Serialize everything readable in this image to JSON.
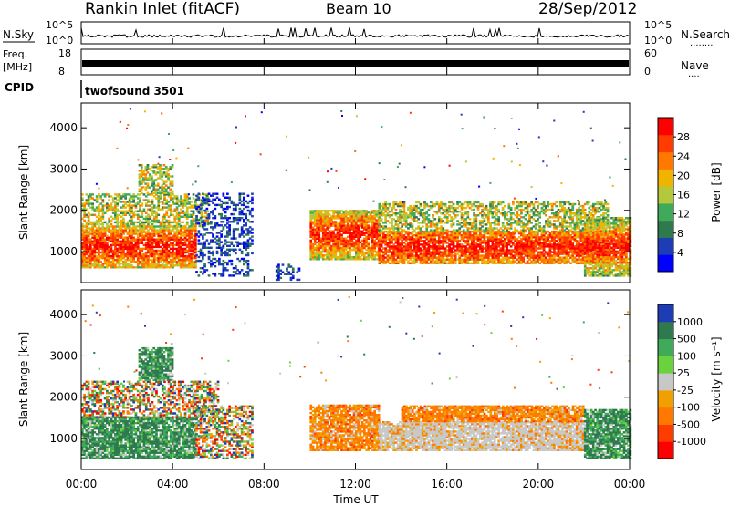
{
  "header": {
    "station": "Rankin Inlet (fitACF)",
    "beam": "Beam 10",
    "date": "28/Sep/2012"
  },
  "strip_panels": {
    "nsky": {
      "left_label": "N.Sky",
      "left_ticks": [
        "10^5",
        "10^0"
      ],
      "right_label": "N.Search",
      "right_ticks": [
        "10^5",
        "10^0"
      ],
      "right_legend": "........"
    },
    "freq": {
      "left_label_1": "Freq.",
      "left_label_2": "[MHz]",
      "left_ticks": [
        "18",
        "8"
      ],
      "right_label": "Nave",
      "right_ticks": [
        "60",
        "0"
      ],
      "right_legend": "...."
    },
    "cpid": {
      "left_label": "CPID",
      "text": "twofsound 3501"
    }
  },
  "chart_data": [
    {
      "type": "heatmap",
      "name": "power",
      "xlabel": "Time UT",
      "ylabel": "Slant Range [km]",
      "xlim": [
        0,
        24
      ],
      "ylim": [
        250,
        4600
      ],
      "x_ticks": [
        "00:00",
        "04:00",
        "08:00",
        "12:00",
        "16:00",
        "20:00",
        "00:00"
      ],
      "y_ticks": [
        1000,
        2000,
        3000,
        4000
      ],
      "colorbar": {
        "label": "Power [dB]",
        "ticks": [
          "4",
          "8",
          "12",
          "16",
          "20",
          "24",
          "28"
        ],
        "range": [
          0,
          32
        ],
        "colors": [
          "#0000ff",
          "#1e3cb4",
          "#2e7a4e",
          "#3faa5a",
          "#b4c83c",
          "#f0b400",
          "#ff7800",
          "#ff3c00",
          "#ff0000"
        ]
      },
      "regions": [
        {
          "t": [
            0.0,
            5.0
          ],
          "r": [
            600,
            1600
          ],
          "level": "high"
        },
        {
          "t": [
            0.0,
            5.5
          ],
          "r": [
            1600,
            2400
          ],
          "level": "mid"
        },
        {
          "t": [
            2.5,
            4.0
          ],
          "r": [
            2400,
            3100
          ],
          "level": "mid"
        },
        {
          "t": [
            5.0,
            7.5
          ],
          "r": [
            400,
            2400
          ],
          "level": "low"
        },
        {
          "t": [
            8.5,
            9.5
          ],
          "r": [
            300,
            700
          ],
          "level": "low"
        },
        {
          "t": [
            10.0,
            13.0
          ],
          "r": [
            800,
            2000
          ],
          "level": "high"
        },
        {
          "t": [
            13.0,
            23.0
          ],
          "r": [
            700,
            1500
          ],
          "level": "high"
        },
        {
          "t": [
            13.0,
            23.0
          ],
          "r": [
            1500,
            2200
          ],
          "level": "mid"
        },
        {
          "t": [
            22.0,
            24.0
          ],
          "r": [
            400,
            1800
          ],
          "level": "high"
        }
      ]
    },
    {
      "type": "heatmap",
      "name": "velocity",
      "xlabel": "Time UT",
      "ylabel": "Slant Range [km]",
      "xlim": [
        0,
        24
      ],
      "ylim": [
        250,
        4600
      ],
      "x_ticks": [
        "00:00",
        "04:00",
        "08:00",
        "12:00",
        "16:00",
        "20:00",
        "00:00"
      ],
      "y_ticks": [
        1000,
        2000,
        3000,
        4000
      ],
      "colorbar": {
        "label": "Velocity [m s⁻¹]",
        "ticks": [
          "1000",
          "500",
          "100",
          "25",
          "-25",
          "-100",
          "-500",
          "-1000"
        ],
        "colors": [
          "#1e3cb4",
          "#2e7a4e",
          "#3faa5a",
          "#6ad23c",
          "#c8c8c8",
          "#f0a000",
          "#ff7800",
          "#ff3c00",
          "#ff0000"
        ]
      },
      "regions": [
        {
          "t": [
            0.0,
            5.0
          ],
          "r": [
            500,
            1500
          ],
          "level": "toward"
        },
        {
          "t": [
            0.0,
            6.0
          ],
          "r": [
            1500,
            2400
          ],
          "level": "mixed"
        },
        {
          "t": [
            2.5,
            4.0
          ],
          "r": [
            2400,
            3200
          ],
          "level": "toward"
        },
        {
          "t": [
            5.0,
            7.5
          ],
          "r": [
            500,
            1800
          ],
          "level": "mixed"
        },
        {
          "t": [
            10.0,
            13.0
          ],
          "r": [
            700,
            1800
          ],
          "level": "away"
        },
        {
          "t": [
            13.0,
            22.0
          ],
          "r": [
            700,
            1400
          ],
          "level": "zero"
        },
        {
          "t": [
            14.0,
            22.0
          ],
          "r": [
            1400,
            1800
          ],
          "level": "away"
        },
        {
          "t": [
            22.0,
            24.0
          ],
          "r": [
            500,
            1700
          ],
          "level": "toward"
        }
      ]
    }
  ]
}
